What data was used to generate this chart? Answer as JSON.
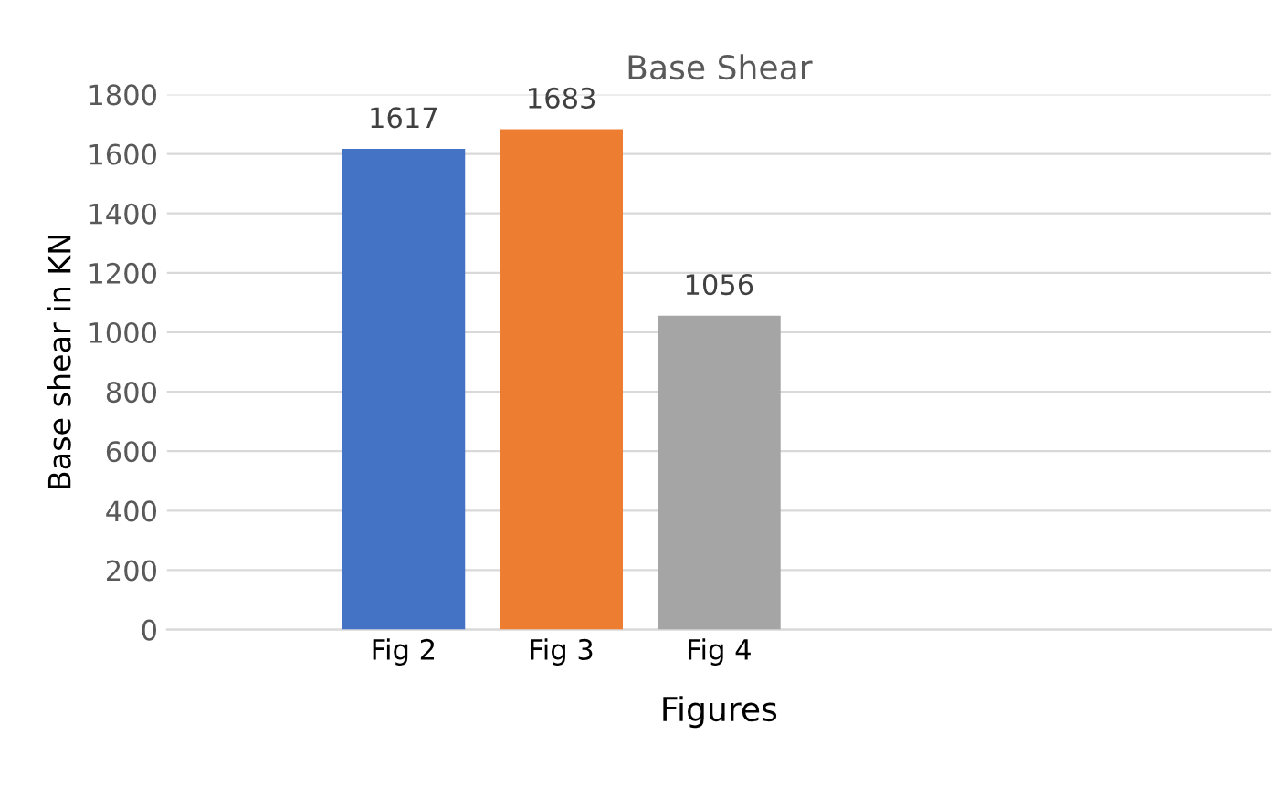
{
  "chart_data": {
    "type": "bar",
    "title": "Base Shear",
    "xlabel": "Figures",
    "ylabel": "Base shear in KN",
    "categories": [
      null,
      "Fig 2",
      "Fig 3",
      "Fig 4",
      null,
      null,
      null
    ],
    "values": [
      null,
      1617,
      1683,
      1056,
      null,
      null,
      null
    ],
    "colors": [
      "#4472c4",
      "#4472c4",
      "#ed7d31",
      "#a5a5a5",
      "#a5a5a5",
      "#a5a5a5",
      "#a5a5a5"
    ],
    "ylim": [
      0,
      1800
    ],
    "yticks": [
      0,
      200,
      400,
      600,
      800,
      1000,
      1200,
      1400,
      1600,
      1800
    ],
    "grid": "y",
    "data_labels": true
  }
}
